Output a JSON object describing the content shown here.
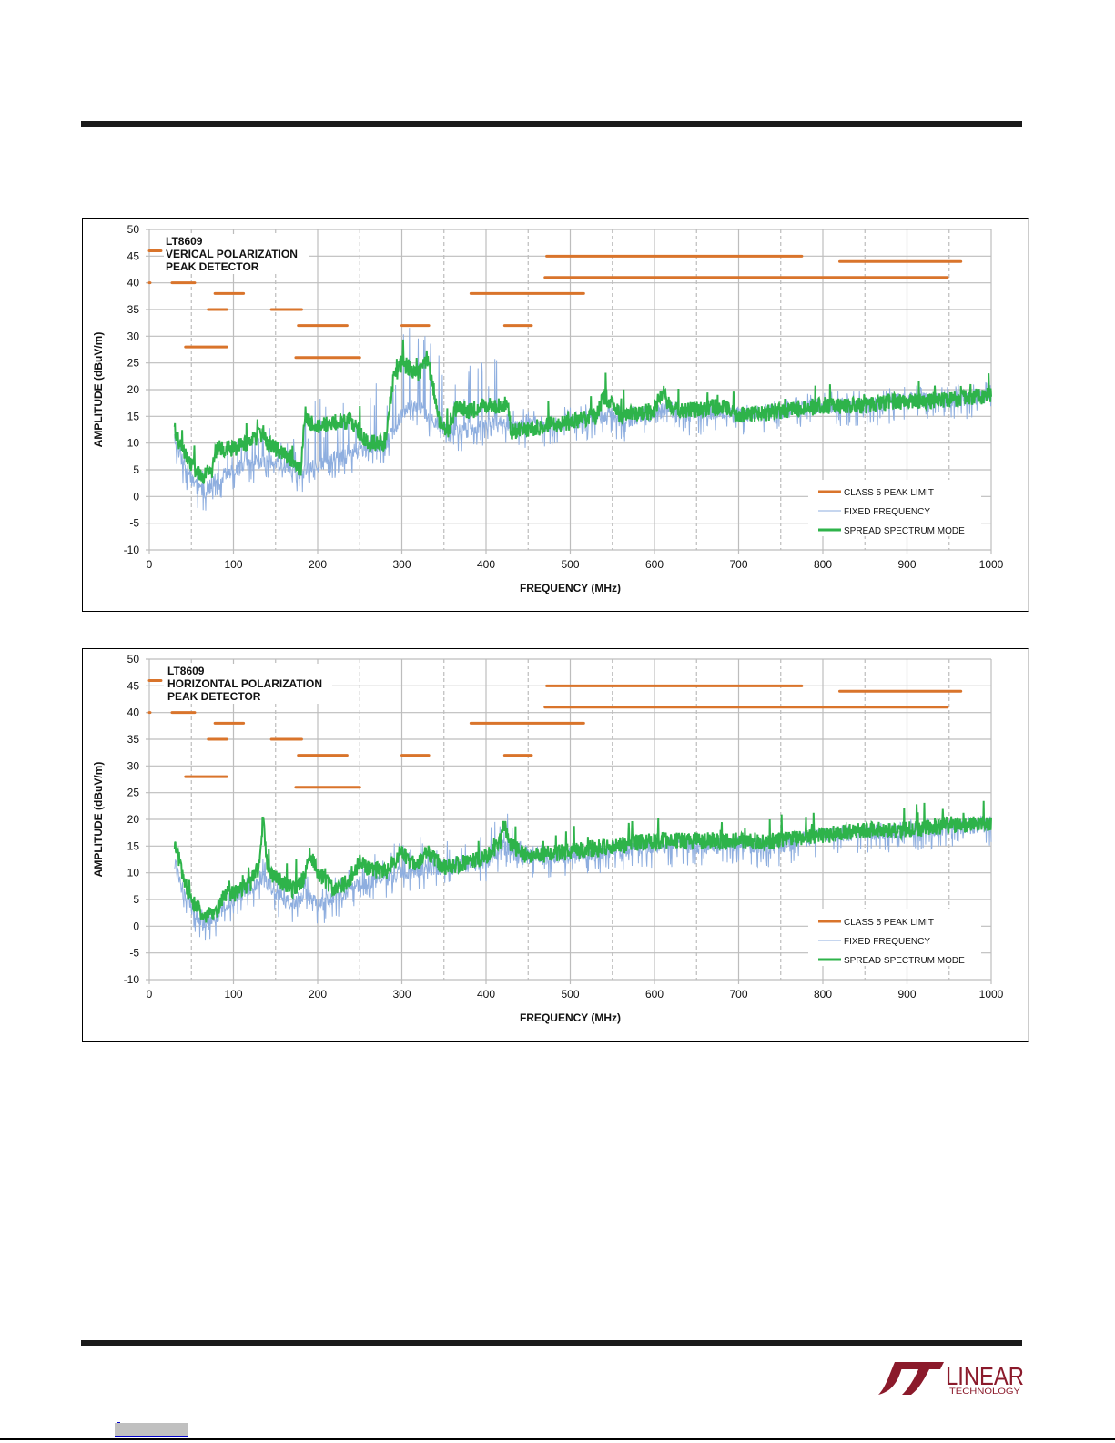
{
  "colors": {
    "limit": "#D9742B",
    "fixed": "#8EAEDF",
    "spread": "#2EB34A",
    "grid": "#BDBDBD",
    "logo": "#8B1A2B"
  },
  "logo": {
    "word1": "LINEAR",
    "word2": "TECHNOLOGY"
  },
  "chart_data": [
    {
      "type": "line",
      "title_lines": [
        "LT8609",
        "VERICAL POLARIZATION",
        "PEAK DETECTOR"
      ],
      "xlabel": "FREQUENCY (MHz)",
      "ylabel": "AMPLITUDE (dBuV/m)",
      "xlim": [
        0,
        1000
      ],
      "ylim": [
        -10,
        50
      ],
      "xticks": [
        "0",
        "100",
        "200",
        "300",
        "400",
        "500",
        "600",
        "700",
        "800",
        "900",
        "1000"
      ],
      "yticks": [
        "50",
        "45",
        "40",
        "35",
        "30",
        "25",
        "20",
        "15",
        "10",
        "5",
        "0",
        "-5",
        "-10"
      ],
      "grid": true,
      "legend_position": "bottom-right",
      "legend": [
        "CLASS 5 PEAK LIMIT",
        "FIXED FREQUENCY",
        "SPREAD SPECTRUM MODE"
      ],
      "limit_segments": [
        {
          "x": [
            0,
            1
          ],
          "y": 40
        },
        {
          "x": [
            27,
            54
          ],
          "y": 40
        },
        {
          "x": [
            78,
            112
          ],
          "y": 38
        },
        {
          "x": [
            70,
            92
          ],
          "y": 35
        },
        {
          "x": [
            145,
            181
          ],
          "y": 35
        },
        {
          "x": [
            177,
            235
          ],
          "y": 32
        },
        {
          "x": [
            43,
            92
          ],
          "y": 28
        },
        {
          "x": [
            174,
            250
          ],
          "y": 26
        },
        {
          "x": [
            300,
            332
          ],
          "y": 32
        },
        {
          "x": [
            422,
            454
          ],
          "y": 32
        },
        {
          "x": [
            382,
            516
          ],
          "y": 38
        },
        {
          "x": [
            470,
            948
          ],
          "y": 41
        },
        {
          "x": [
            472,
            775
          ],
          "y": 45
        },
        {
          "x": [
            820,
            964
          ],
          "y": 44
        },
        {
          "x": [
            0,
            14
          ],
          "y": 46
        }
      ],
      "series": [
        {
          "name": "FIXED FREQUENCY",
          "x": [
            30,
            40,
            55,
            65,
            80,
            100,
            120,
            140,
            160,
            180,
            185,
            200,
            230,
            260,
            280,
            290,
            300,
            320,
            330,
            350,
            370,
            390,
            410,
            425,
            430,
            460,
            500,
            540,
            560,
            600,
            620,
            640,
            680,
            700,
            750,
            800,
            850,
            900,
            950,
            1000
          ],
          "y": [
            11,
            6,
            2,
            1,
            3,
            5,
            6,
            7,
            6,
            4,
            5,
            6,
            8,
            9,
            10,
            12,
            16,
            17,
            15,
            13,
            12,
            13,
            14,
            14,
            13,
            13,
            14,
            15,
            14,
            15,
            17,
            15,
            16,
            15,
            16,
            17,
            17,
            18,
            18,
            19
          ],
          "spike_amp": [
            2,
            2,
            3,
            4,
            4,
            6,
            6,
            6,
            6,
            10,
            14,
            14,
            14,
            12,
            12,
            16,
            16,
            16,
            16,
            12,
            12,
            12,
            12,
            10,
            4,
            3,
            3,
            3,
            3,
            2,
            2,
            2,
            2,
            2,
            2,
            3,
            3,
            3,
            3,
            3
          ]
        },
        {
          "name": "SPREAD SPECTRUM MODE",
          "x": [
            30,
            35,
            45,
            55,
            65,
            75,
            80,
            100,
            120,
            135,
            140,
            150,
            170,
            180,
            185,
            190,
            200,
            220,
            240,
            260,
            280,
            290,
            300,
            310,
            320,
            330,
            345,
            355,
            365,
            380,
            400,
            420,
            425,
            430,
            460,
            500,
            530,
            540,
            560,
            600,
            610,
            620,
            640,
            680,
            700,
            750,
            800,
            850,
            900,
            950,
            1000
          ],
          "y": [
            13,
            10,
            7,
            5,
            4,
            5,
            9,
            9,
            10,
            12,
            10,
            9,
            7,
            5,
            16,
            14,
            13,
            14,
            14,
            10,
            10,
            22,
            25,
            24,
            23,
            26,
            14,
            12,
            17,
            16,
            17,
            17,
            18,
            12,
            13,
            14,
            15,
            19,
            15,
            16,
            20,
            16,
            16,
            17,
            15,
            16,
            17,
            17,
            18,
            18,
            19
          ]
        }
      ]
    },
    {
      "type": "line",
      "title_lines": [
        "LT8609",
        "HORIZONTAL  POLARIZATION",
        "PEAK DETECTOR"
      ],
      "xlabel": "FREQUENCY (MHz)",
      "ylabel": "AMPLITUDE (dBuV/m)",
      "xlim": [
        0,
        1000
      ],
      "ylim": [
        -10,
        50
      ],
      "xticks": [
        "0",
        "100",
        "200",
        "300",
        "400",
        "500",
        "600",
        "700",
        "800",
        "900",
        "1000"
      ],
      "yticks": [
        "50",
        "45",
        "40",
        "35",
        "30",
        "25",
        "20",
        "15",
        "10",
        "5",
        "0",
        "-5",
        "-10"
      ],
      "grid": true,
      "legend_position": "bottom-right",
      "legend": [
        "CLASS 5 PEAK LIMIT",
        "FIXED FREQUENCY",
        "SPREAD SPECTRUM MODE"
      ],
      "limit_segments": [
        {
          "x": [
            0,
            1
          ],
          "y": 40
        },
        {
          "x": [
            27,
            54
          ],
          "y": 40
        },
        {
          "x": [
            78,
            112
          ],
          "y": 38
        },
        {
          "x": [
            70,
            92
          ],
          "y": 35
        },
        {
          "x": [
            145,
            181
          ],
          "y": 35
        },
        {
          "x": [
            177,
            235
          ],
          "y": 32
        },
        {
          "x": [
            43,
            92
          ],
          "y": 28
        },
        {
          "x": [
            174,
            250
          ],
          "y": 26
        },
        {
          "x": [
            300,
            332
          ],
          "y": 32
        },
        {
          "x": [
            422,
            454
          ],
          "y": 32
        },
        {
          "x": [
            382,
            516
          ],
          "y": 38
        },
        {
          "x": [
            470,
            948
          ],
          "y": 41
        },
        {
          "x": [
            472,
            775
          ],
          "y": 45
        },
        {
          "x": [
            820,
            964
          ],
          "y": 44
        },
        {
          "x": [
            0,
            14
          ],
          "y": 46
        }
      ],
      "series": [
        {
          "name": "FIXED FREQUENCY",
          "x": [
            30,
            40,
            55,
            65,
            80,
            100,
            120,
            135,
            150,
            170,
            185,
            200,
            220,
            250,
            280,
            300,
            330,
            360,
            400,
            420,
            440,
            500,
            550,
            600,
            700,
            750,
            800,
            900,
            1000
          ],
          "y": [
            12,
            6,
            2,
            1,
            2,
            5,
            7,
            9,
            6,
            4,
            6,
            4,
            5,
            8,
            9,
            10,
            11,
            11,
            12,
            15,
            13,
            13,
            14,
            15,
            15,
            15,
            17,
            18,
            19
          ],
          "spike_amp": [
            2,
            2,
            2,
            2,
            2,
            3,
            3,
            5,
            3,
            3,
            5,
            3,
            4,
            6,
            6,
            6,
            6,
            5,
            5,
            8,
            3,
            2,
            2,
            2,
            2,
            2,
            2,
            2,
            2
          ]
        },
        {
          "name": "SPREAD SPECTRUM MODE",
          "x": [
            30,
            32,
            40,
            50,
            60,
            70,
            80,
            90,
            100,
            120,
            130,
            135,
            140,
            150,
            170,
            185,
            190,
            200,
            220,
            240,
            250,
            260,
            280,
            295,
            300,
            310,
            320,
            330,
            350,
            380,
            400,
            415,
            422,
            430,
            450,
            500,
            550,
            600,
            650,
            700,
            750,
            800,
            850,
            900,
            950,
            1000
          ],
          "y": [
            14,
            15,
            9,
            5,
            3,
            2,
            3,
            6,
            6,
            8,
            11,
            20,
            11,
            9,
            7,
            9,
            14,
            10,
            7,
            9,
            12,
            11,
            10,
            13,
            14,
            12,
            12,
            14,
            11,
            12,
            13,
            15,
            19,
            15,
            13,
            14,
            15,
            16,
            16,
            16,
            16,
            17,
            18,
            18,
            19,
            19
          ]
        }
      ]
    }
  ]
}
